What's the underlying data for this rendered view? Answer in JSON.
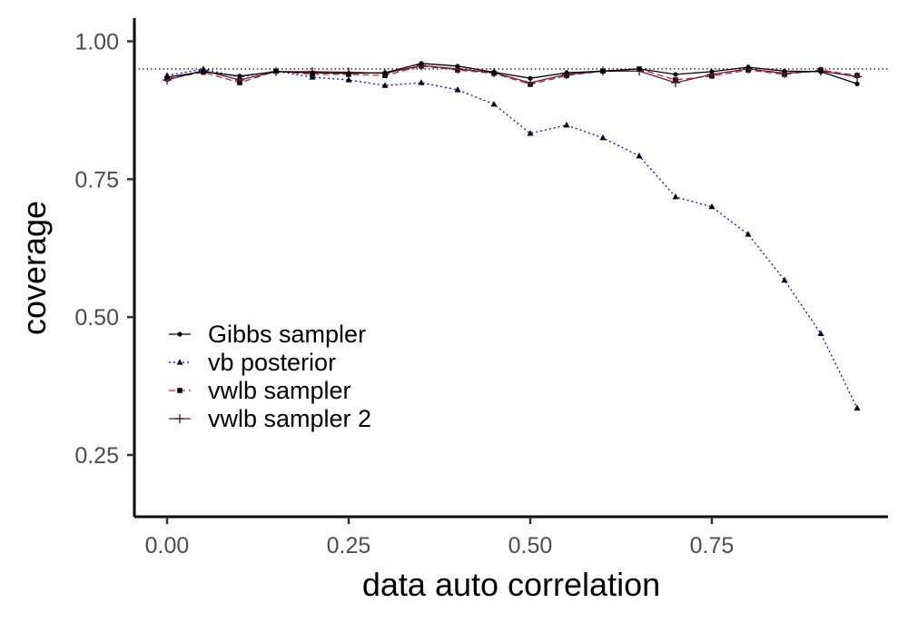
{
  "chart_data": {
    "type": "line",
    "title": "",
    "xlabel": "data auto correlation",
    "ylabel": "coverage",
    "xlim": [
      -0.045,
      0.9925
    ],
    "ylim": [
      0.138,
      1.042
    ],
    "xticks": [
      0.0,
      0.25,
      0.5,
      0.75
    ],
    "xtick_labels": [
      "0.00",
      "0.25",
      "0.50",
      "0.75"
    ],
    "yticks": [
      0.25,
      0.5,
      0.75,
      1.0
    ],
    "ytick_labels": [
      "0.25",
      "0.50",
      "0.75",
      "1.00"
    ],
    "reference_line": {
      "y": 0.95,
      "style": "dotted",
      "color": "#000000"
    },
    "grid": false,
    "legend_position": "bottom-left",
    "x": [
      0.0,
      0.05,
      0.1,
      0.15,
      0.2,
      0.25,
      0.3,
      0.35,
      0.4,
      0.45,
      0.5,
      0.55,
      0.6,
      0.65,
      0.7,
      0.75,
      0.8,
      0.85,
      0.9,
      0.95
    ],
    "series": [
      {
        "name": "Gibbs sampler",
        "color": "#000000",
        "dash": "solid",
        "marker": "circle",
        "values": [
          0.935,
          0.945,
          0.937,
          0.945,
          0.943,
          0.942,
          0.943,
          0.96,
          0.955,
          0.944,
          0.933,
          0.943,
          0.946,
          0.95,
          0.94,
          0.945,
          0.953,
          0.946,
          0.945,
          0.923
        ]
      },
      {
        "name": "vb posterior",
        "color": "#0000ff",
        "dash": "dotted",
        "marker": "triangle",
        "values": [
          0.938,
          0.95,
          0.935,
          0.946,
          0.935,
          0.93,
          0.92,
          0.925,
          0.912,
          0.886,
          0.833,
          0.848,
          0.825,
          0.792,
          0.718,
          0.7,
          0.65,
          0.567,
          0.47,
          0.335
        ]
      },
      {
        "name": "vwlb sampler",
        "color": "#e41a1c",
        "dash": "dashed",
        "marker": "square",
        "values": [
          0.932,
          0.944,
          0.925,
          0.946,
          0.94,
          0.94,
          0.938,
          0.955,
          0.948,
          0.942,
          0.922,
          0.938,
          0.946,
          0.95,
          0.93,
          0.937,
          0.948,
          0.94,
          0.948,
          0.938
        ]
      },
      {
        "name": "vwlb sampler 2",
        "color": "#5a1a3a",
        "dash": "solid",
        "marker": "plus",
        "values": [
          0.93,
          0.947,
          0.93,
          0.945,
          0.945,
          0.944,
          0.942,
          0.956,
          0.95,
          0.943,
          0.925,
          0.94,
          0.946,
          0.946,
          0.925,
          0.94,
          0.95,
          0.942,
          0.946,
          0.936
        ]
      }
    ]
  }
}
